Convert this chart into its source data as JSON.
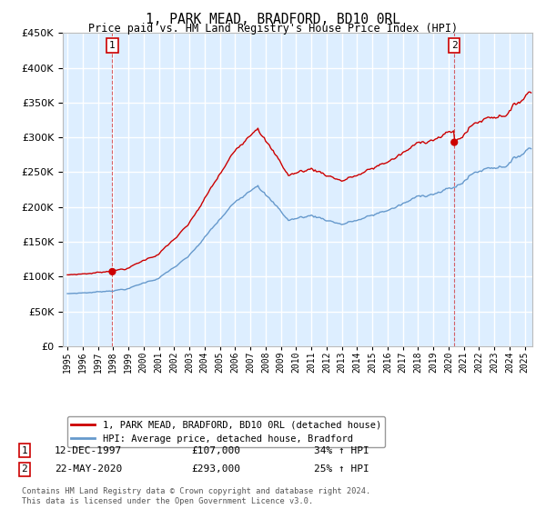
{
  "title": "1, PARK MEAD, BRADFORD, BD10 0RL",
  "subtitle": "Price paid vs. HM Land Registry's House Price Index (HPI)",
  "legend_line1": "1, PARK MEAD, BRADFORD, BD10 0RL (detached house)",
  "legend_line2": "HPI: Average price, detached house, Bradford",
  "sale1_date": "12-DEC-1997",
  "sale1_price": "£107,000",
  "sale1_hpi": "34% ↑ HPI",
  "sale1_year": 1997.95,
  "sale1_value": 107000,
  "sale2_date": "22-MAY-2020",
  "sale2_price": "£293,000",
  "sale2_hpi": "25% ↑ HPI",
  "sale2_year": 2020.38,
  "sale2_value": 293000,
  "ylim": [
    0,
    450000
  ],
  "yticks": [
    0,
    50000,
    100000,
    150000,
    200000,
    250000,
    300000,
    350000,
    400000,
    450000
  ],
  "xlim_start": 1994.7,
  "xlim_end": 2025.5,
  "red_color": "#cc0000",
  "blue_color": "#6699cc",
  "bg_color": "#ddeeff",
  "grid_color": "#ffffff",
  "footnote": "Contains HM Land Registry data © Crown copyright and database right 2024.\nThis data is licensed under the Open Government Licence v3.0."
}
